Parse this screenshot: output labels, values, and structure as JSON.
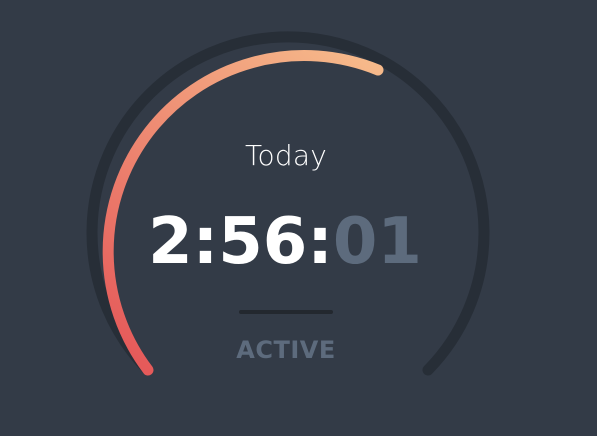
{
  "gauge": {
    "progress": 0.5,
    "track_color": "#272e37",
    "gradient_start": "#e55a5a",
    "gradient_end": "#f6b98a"
  },
  "timer": {
    "label": "Today",
    "hours_minutes": "2:56:",
    "seconds": "01",
    "status": "ACTIVE"
  },
  "colors": {
    "background": "#333b47",
    "primary_text": "#ffffff",
    "muted_text": "#5d6b7d",
    "divider": "#23282f"
  }
}
